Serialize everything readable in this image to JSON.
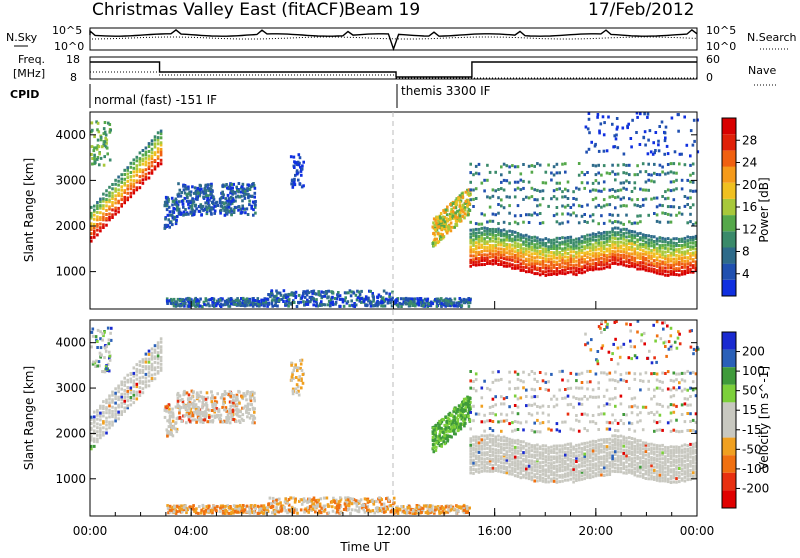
{
  "header": {
    "title": "Christmas Valley East (fitACF)",
    "beam": "Beam 19",
    "date": "17/Feb/2012"
  },
  "aux_panels": {
    "nsky_label": "N.Sky",
    "nsearch_label": "N.Search",
    "nsky_ticks": [
      "10^5",
      "10^0"
    ],
    "nsearch_ticks": [
      "10^5",
      "10^0"
    ],
    "freq_label_line1": "Freq.",
    "freq_label_line2": "[MHz]",
    "freq_ticks": [
      "18",
      "8"
    ],
    "nave_label": "Nave",
    "nave_ticks": [
      "60",
      "0"
    ],
    "cpid_label": "CPID",
    "cpid_modes": [
      "normal (fast) -151 IF",
      "themis 3300 IF"
    ]
  },
  "chart_data": [
    {
      "type": "heatmap",
      "name": "power",
      "ylabel": "Slant Range [km]",
      "yticks": [
        1000,
        2000,
        3000,
        4000
      ],
      "ylim": [
        180,
        4500
      ],
      "x_range_hours": [
        0,
        24
      ],
      "colorbar": {
        "label": "Power [dB]",
        "ticks": [
          "4",
          "8",
          "12",
          "16",
          "20",
          "24",
          "28"
        ],
        "colors": [
          "#1030e0",
          "#2050b0",
          "#2e6b8a",
          "#3a8a6a",
          "#55a84a",
          "#a8c83a",
          "#f0c020",
          "#f59a1a",
          "#f06010",
          "#e02008",
          "#d80000"
        ]
      }
    },
    {
      "type": "heatmap",
      "name": "velocity",
      "ylabel": "Slant Range [km]",
      "yticks": [
        1000,
        2000,
        3000,
        4000
      ],
      "ylim": [
        180,
        4500
      ],
      "x_range_hours": [
        0,
        24
      ],
      "xlabel": "Time UT",
      "xticks": [
        "00:00",
        "04:00",
        "08:00",
        "12:00",
        "16:00",
        "20:00",
        "00:00"
      ],
      "colorbar": {
        "label": "Velocity [m s^-1]",
        "ticks": [
          "200",
          "100",
          "50",
          "15",
          "-15",
          "-50",
          "-100",
          "-200"
        ],
        "colors": [
          "#1a2ad0",
          "#2a60b8",
          "#3f9a3a",
          "#7ccf3a",
          "#c8c8c0",
          "#c8c8c0",
          "#f0a020",
          "#f07010",
          "#e83010",
          "#e00000"
        ]
      }
    }
  ]
}
